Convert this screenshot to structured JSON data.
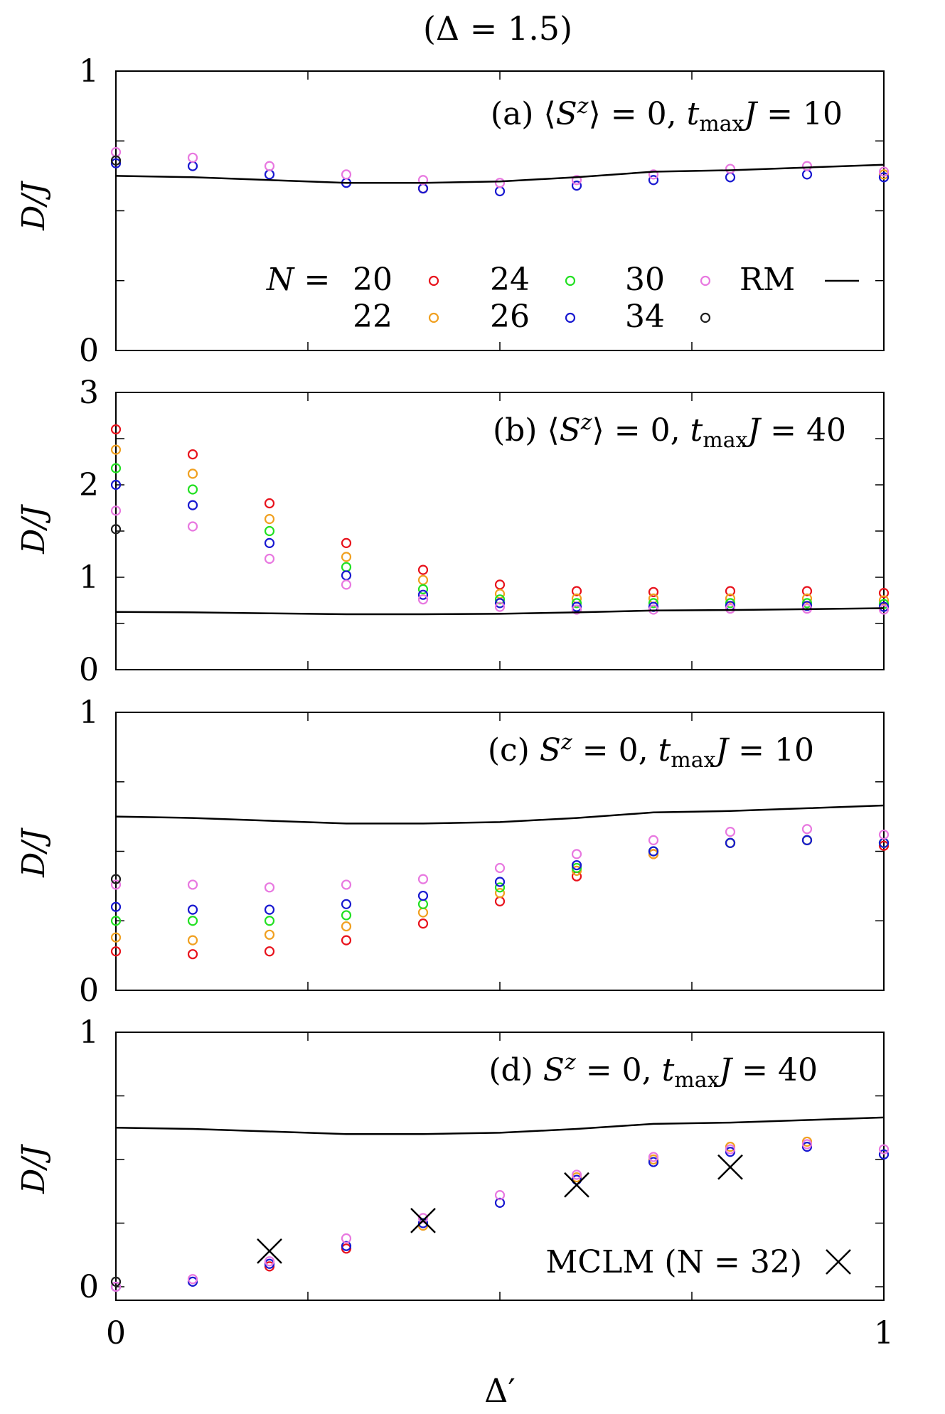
{
  "figure": {
    "title": "(Δ = 1.5)",
    "xlabel": "Δ′",
    "ylabel": "D/J",
    "x_ticks": [
      "0",
      "1"
    ],
    "xlim": [
      0,
      1
    ]
  },
  "legend": {
    "n_prefix": "N =",
    "n_labels": [
      "20",
      "22",
      "24",
      "26",
      "30",
      "34"
    ],
    "rm_label": "RM",
    "mclm_label": "MCLM (N = 32)"
  },
  "colors": {
    "N20": "#e8121c",
    "N22": "#f0a020",
    "N24": "#22e022",
    "N26": "#1818d0",
    "N30": "#e878e0",
    "N34": "#202020",
    "RM": "#000000",
    "MCLM": "#000000"
  },
  "chart_data": [
    {
      "type": "scatter",
      "panel_label": "(a) ⟨S^z⟩ = 0, t_max J = 10",
      "ylim": [
        0,
        1
      ],
      "y_ticks": [
        "0",
        "1"
      ],
      "x": [
        0,
        0.1,
        0.2,
        0.3,
        0.4,
        0.5,
        0.6,
        0.7,
        0.8,
        0.9,
        1.0
      ],
      "series": [
        {
          "name": "N = 20",
          "key": "N20",
          "x": [
            0.4
          ],
          "values": [
            0.58
          ]
        },
        {
          "name": "N = 22",
          "key": "N22",
          "x": [
            1.0
          ],
          "values": [
            0.63
          ]
        },
        {
          "name": "N = 26",
          "key": "N26",
          "x": [
            0,
            0.1,
            0.2,
            0.3,
            0.4,
            0.5,
            0.6,
            0.7,
            0.8,
            0.9,
            1.0
          ],
          "values": [
            0.67,
            0.66,
            0.63,
            0.6,
            0.58,
            0.57,
            0.59,
            0.61,
            0.62,
            0.63,
            0.62
          ]
        },
        {
          "name": "N = 30",
          "key": "N30",
          "x": [
            0,
            0.1,
            0.2,
            0.3,
            0.4,
            0.5,
            0.6,
            0.7,
            0.8,
            0.9,
            1.0
          ],
          "values": [
            0.71,
            0.69,
            0.66,
            0.63,
            0.61,
            0.6,
            0.61,
            0.63,
            0.65,
            0.66,
            0.64
          ]
        },
        {
          "name": "N = 34",
          "key": "N34",
          "x": [
            0
          ],
          "values": [
            0.68
          ]
        },
        {
          "name": "RM",
          "key": "RM",
          "kind": "line",
          "x": [
            0,
            0.1,
            0.2,
            0.3,
            0.4,
            0.5,
            0.6,
            0.7,
            0.8,
            0.9,
            1.0
          ],
          "values": [
            0.625,
            0.62,
            0.61,
            0.6,
            0.6,
            0.605,
            0.62,
            0.64,
            0.645,
            0.655,
            0.665
          ]
        }
      ]
    },
    {
      "type": "scatter",
      "panel_label": "(b) ⟨S^z⟩ = 0, t_max J = 40",
      "ylim": [
        0,
        3
      ],
      "y_ticks": [
        "0",
        "1",
        "2",
        "3"
      ],
      "x": [
        0,
        0.1,
        0.2,
        0.3,
        0.4,
        0.5,
        0.6,
        0.7,
        0.8,
        0.9,
        1.0
      ],
      "series": [
        {
          "name": "N = 20",
          "key": "N20",
          "x": [
            0,
            0.1,
            0.2,
            0.3,
            0.4,
            0.5,
            0.6,
            0.7,
            0.8,
            0.9,
            1.0
          ],
          "values": [
            2.6,
            2.33,
            1.8,
            1.37,
            1.08,
            0.92,
            0.85,
            0.84,
            0.85,
            0.85,
            0.83
          ]
        },
        {
          "name": "N = 22",
          "key": "N22",
          "x": [
            0,
            0.1,
            0.2,
            0.3,
            0.4,
            0.5,
            0.6,
            0.7,
            0.8,
            0.9,
            1.0
          ],
          "values": [
            2.38,
            2.12,
            1.63,
            1.22,
            0.97,
            0.82,
            0.77,
            0.77,
            0.77,
            0.77,
            0.75
          ]
        },
        {
          "name": "N = 24",
          "key": "N24",
          "x": [
            0,
            0.1,
            0.2,
            0.3,
            0.4,
            0.5,
            0.6,
            0.7,
            0.8,
            0.9,
            1.0
          ],
          "values": [
            2.18,
            1.95,
            1.5,
            1.11,
            0.87,
            0.76,
            0.72,
            0.72,
            0.72,
            0.72,
            0.71
          ]
        },
        {
          "name": "N = 26",
          "key": "N26",
          "x": [
            0,
            0.1,
            0.2,
            0.3,
            0.4,
            0.5,
            0.6,
            0.7,
            0.8,
            0.9,
            1.0
          ],
          "values": [
            2.0,
            1.78,
            1.37,
            1.02,
            0.81,
            0.72,
            0.68,
            0.68,
            0.69,
            0.69,
            0.68
          ]
        },
        {
          "name": "N = 30",
          "key": "N30",
          "x": [
            0,
            0.1,
            0.2,
            0.3,
            0.4,
            0.5,
            0.6,
            0.7,
            0.8,
            0.9,
            1.0
          ],
          "values": [
            1.72,
            1.55,
            1.2,
            0.92,
            0.76,
            0.68,
            0.65,
            0.65,
            0.66,
            0.66,
            0.65
          ]
        },
        {
          "name": "N = 34",
          "key": "N34",
          "x": [
            0
          ],
          "values": [
            1.52
          ]
        },
        {
          "name": "RM",
          "key": "RM",
          "kind": "line",
          "x": [
            0,
            0.1,
            0.2,
            0.3,
            0.4,
            0.5,
            0.6,
            0.7,
            0.8,
            0.9,
            1.0
          ],
          "values": [
            0.625,
            0.62,
            0.61,
            0.6,
            0.6,
            0.605,
            0.62,
            0.64,
            0.645,
            0.655,
            0.665
          ]
        }
      ]
    },
    {
      "type": "scatter",
      "panel_label": "(c) S^z = 0, t_max J = 10",
      "ylim": [
        0,
        1
      ],
      "y_ticks": [
        "0",
        "1"
      ],
      "x": [
        0,
        0.1,
        0.2,
        0.3,
        0.4,
        0.5,
        0.6,
        0.7,
        0.8,
        0.9,
        1.0
      ],
      "series": [
        {
          "name": "N = 20",
          "key": "N20",
          "x": [
            0,
            0.1,
            0.2,
            0.3,
            0.4,
            0.5,
            0.6,
            0.7,
            0.8,
            0.9,
            1.0
          ],
          "values": [
            0.14,
            0.13,
            0.14,
            0.18,
            0.24,
            0.32,
            0.41,
            0.49,
            0.53,
            0.54,
            0.52
          ]
        },
        {
          "name": "N = 22",
          "key": "N22",
          "x": [
            0,
            0.1,
            0.2,
            0.3,
            0.4,
            0.5,
            0.6,
            0.7,
            0.8,
            0.9,
            1.0
          ],
          "values": [
            0.19,
            0.18,
            0.2,
            0.23,
            0.28,
            0.35,
            0.43,
            0.49,
            0.53,
            0.54,
            0.53
          ]
        },
        {
          "name": "N = 24",
          "key": "N24",
          "x": [
            0,
            0.1,
            0.2,
            0.3,
            0.4,
            0.5,
            0.6,
            0.7,
            0.8,
            0.9,
            1.0
          ],
          "values": [
            0.25,
            0.25,
            0.25,
            0.27,
            0.31,
            0.37,
            0.44,
            0.5,
            0.53,
            0.54,
            0.53
          ]
        },
        {
          "name": "N = 26",
          "key": "N26",
          "x": [
            0,
            0.1,
            0.2,
            0.3,
            0.4,
            0.5,
            0.6,
            0.7,
            0.8,
            0.9,
            1.0
          ],
          "values": [
            0.3,
            0.29,
            0.29,
            0.31,
            0.34,
            0.39,
            0.45,
            0.5,
            0.53,
            0.54,
            0.53
          ]
        },
        {
          "name": "N = 30",
          "key": "N30",
          "x": [
            0,
            0.1,
            0.2,
            0.3,
            0.4,
            0.5,
            0.6,
            0.7,
            0.8,
            0.9,
            1.0
          ],
          "values": [
            0.38,
            0.38,
            0.37,
            0.38,
            0.4,
            0.44,
            0.49,
            0.54,
            0.57,
            0.58,
            0.56
          ]
        },
        {
          "name": "N = 34",
          "key": "N34",
          "x": [
            0
          ],
          "values": [
            0.4
          ]
        },
        {
          "name": "RM",
          "key": "RM",
          "kind": "line",
          "x": [
            0,
            0.1,
            0.2,
            0.3,
            0.4,
            0.5,
            0.6,
            0.7,
            0.8,
            0.9,
            1.0
          ],
          "values": [
            0.625,
            0.62,
            0.61,
            0.6,
            0.6,
            0.605,
            0.62,
            0.64,
            0.645,
            0.655,
            0.665
          ]
        }
      ]
    },
    {
      "type": "scatter",
      "panel_label": "(d) S^z = 0, t_max J = 40",
      "ylim": [
        0,
        1
      ],
      "y_ticks": [
        "0",
        "1"
      ],
      "x": [
        0,
        0.1,
        0.2,
        0.3,
        0.4,
        0.5,
        0.6,
        0.7,
        0.8,
        0.9,
        1.0
      ],
      "series": [
        {
          "name": "N = 20",
          "key": "N20",
          "x": [
            0.2,
            0.3
          ],
          "values": [
            0.08,
            0.15
          ]
        },
        {
          "name": "N = 22",
          "key": "N22",
          "x": [
            0.4,
            0.6,
            0.7,
            0.8,
            0.9
          ],
          "values": [
            0.24,
            0.43,
            0.5,
            0.55,
            0.57
          ]
        },
        {
          "name": "N = 26",
          "key": "N26",
          "x": [
            0,
            0.1,
            0.2,
            0.3,
            0.4,
            0.5,
            0.6,
            0.7,
            0.8,
            0.9,
            1.0
          ],
          "values": [
            0.0,
            0.02,
            0.09,
            0.16,
            0.25,
            0.33,
            0.42,
            0.49,
            0.53,
            0.55,
            0.52
          ]
        },
        {
          "name": "N = 30",
          "key": "N30",
          "x": [
            0,
            0.1,
            0.2,
            0.3,
            0.4,
            0.5,
            0.6,
            0.7,
            0.8,
            0.9,
            1.0
          ],
          "values": [
            0.0,
            0.03,
            0.1,
            0.19,
            0.27,
            0.36,
            0.44,
            0.51,
            0.54,
            0.56,
            0.54
          ]
        },
        {
          "name": "N = 34",
          "key": "N34",
          "x": [
            0
          ],
          "values": [
            0.02
          ]
        },
        {
          "name": "MCLM (N = 32)",
          "key": "MCLM",
          "kind": "cross",
          "x": [
            0.2,
            0.4,
            0.6,
            0.8
          ],
          "values": [
            0.14,
            0.26,
            0.4,
            0.47
          ]
        },
        {
          "name": "RM",
          "key": "RM",
          "kind": "line",
          "x": [
            0,
            0.1,
            0.2,
            0.3,
            0.4,
            0.5,
            0.6,
            0.7,
            0.8,
            0.9,
            1.0
          ],
          "values": [
            0.625,
            0.62,
            0.61,
            0.6,
            0.6,
            0.605,
            0.62,
            0.64,
            0.645,
            0.655,
            0.665
          ]
        }
      ]
    }
  ]
}
